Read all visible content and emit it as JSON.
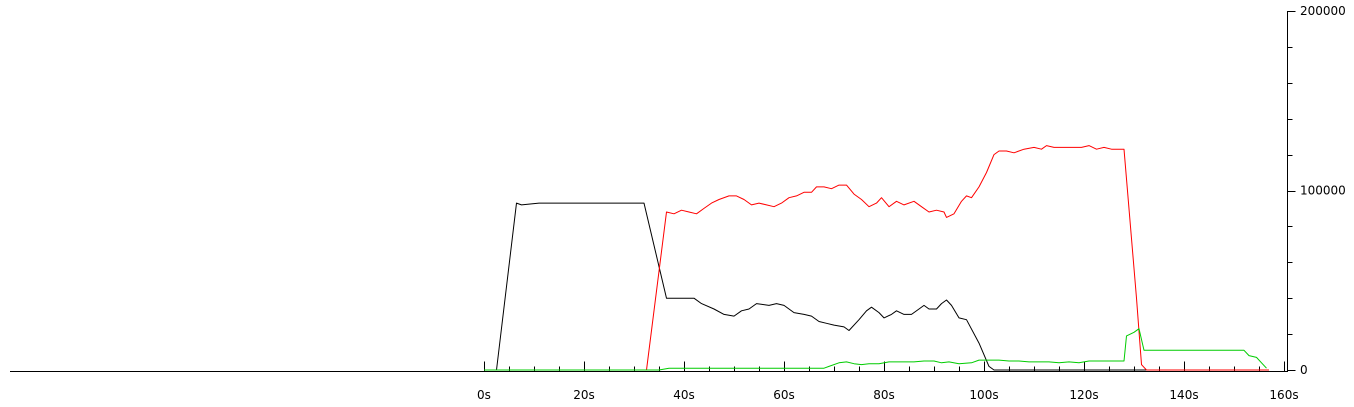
{
  "chart_data": {
    "type": "line",
    "title": "",
    "xlabel": "",
    "ylabel": "",
    "xlim": [
      0,
      160
    ],
    "ylim": [
      0,
      200000
    ],
    "x_tick_labels": [
      {
        "value": 0,
        "label": "0s"
      },
      {
        "value": 20,
        "label": "20s"
      },
      {
        "value": 40,
        "label": "40s"
      },
      {
        "value": 60,
        "label": "60s"
      },
      {
        "value": 80,
        "label": "80s"
      },
      {
        "value": 100,
        "label": "100s"
      },
      {
        "value": 120,
        "label": "120s"
      },
      {
        "value": 140,
        "label": "140s"
      },
      {
        "value": 160,
        "label": "160s"
      }
    ],
    "x_minor_step": 5,
    "y_tick_labels": [
      {
        "value": 200000,
        "label": "200000"
      },
      {
        "value": 100000,
        "label": "100000"
      },
      {
        "value": 0,
        "label": "0"
      }
    ],
    "y_minor_step": 20000,
    "y_axis_side": "right",
    "grid": false,
    "legend": "none",
    "series": [
      {
        "color": "#000000",
        "points": [
          [
            0,
            0
          ],
          [
            2.5,
            0
          ],
          [
            6.5,
            93000
          ],
          [
            7.5,
            92000
          ],
          [
            11,
            93000
          ],
          [
            32,
            93000
          ],
          [
            36.5,
            40000
          ],
          [
            42,
            40000
          ],
          [
            43.5,
            37000
          ],
          [
            46,
            34000
          ],
          [
            48,
            31000
          ],
          [
            50,
            30000
          ],
          [
            51.5,
            33000
          ],
          [
            53,
            34000
          ],
          [
            54.5,
            37000
          ],
          [
            57,
            36000
          ],
          [
            58.5,
            37000
          ],
          [
            60,
            36000
          ],
          [
            62,
            32000
          ],
          [
            64,
            31000
          ],
          [
            65.5,
            30000
          ],
          [
            67,
            27000
          ],
          [
            68.5,
            26000
          ],
          [
            70,
            25000
          ],
          [
            72,
            24000
          ],
          [
            73,
            22000
          ],
          [
            75,
            28000
          ],
          [
            76.5,
            33000
          ],
          [
            77.5,
            35000
          ],
          [
            79,
            32000
          ],
          [
            80,
            29000
          ],
          [
            81.5,
            31000
          ],
          [
            82.5,
            33000
          ],
          [
            84,
            31000
          ],
          [
            85.5,
            31000
          ],
          [
            87,
            34000
          ],
          [
            88,
            36000
          ],
          [
            89,
            34000
          ],
          [
            90.5,
            34000
          ],
          [
            91.5,
            37000
          ],
          [
            92.5,
            39000
          ],
          [
            93.5,
            36000
          ],
          [
            95,
            29000
          ],
          [
            96.5,
            28000
          ],
          [
            99,
            15000
          ],
          [
            101,
            2000
          ],
          [
            102,
            0
          ],
          [
            157,
            0
          ]
        ]
      },
      {
        "color": "#ff0000",
        "points": [
          [
            0,
            0
          ],
          [
            32.5,
            0
          ],
          [
            36.5,
            88000
          ],
          [
            38,
            87000
          ],
          [
            39.5,
            89000
          ],
          [
            41,
            88000
          ],
          [
            42.5,
            87000
          ],
          [
            44,
            90000
          ],
          [
            45.5,
            93000
          ],
          [
            47,
            95000
          ],
          [
            49,
            97000
          ],
          [
            50.5,
            97000
          ],
          [
            52,
            95000
          ],
          [
            53.5,
            92000
          ],
          [
            55,
            93000
          ],
          [
            56.5,
            92000
          ],
          [
            58,
            91000
          ],
          [
            59.5,
            93000
          ],
          [
            61,
            96000
          ],
          [
            62.5,
            97000
          ],
          [
            64,
            99000
          ],
          [
            65.5,
            99000
          ],
          [
            66.5,
            102000
          ],
          [
            68,
            102000
          ],
          [
            69.5,
            101000
          ],
          [
            71,
            103000
          ],
          [
            72.5,
            103000
          ],
          [
            74,
            98000
          ],
          [
            75.5,
            95000
          ],
          [
            77,
            91000
          ],
          [
            78.5,
            93000
          ],
          [
            79.5,
            96000
          ],
          [
            81,
            91000
          ],
          [
            82.5,
            94000
          ],
          [
            84,
            92000
          ],
          [
            86,
            94000
          ],
          [
            87.5,
            91000
          ],
          [
            89,
            88000
          ],
          [
            90.5,
            89000
          ],
          [
            92,
            88000
          ],
          [
            92.5,
            85000
          ],
          [
            94,
            87000
          ],
          [
            95.5,
            94000
          ],
          [
            96.5,
            97000
          ],
          [
            97.5,
            96000
          ],
          [
            99,
            102000
          ],
          [
            100.5,
            110000
          ],
          [
            102,
            120000
          ],
          [
            103,
            122000
          ],
          [
            104.5,
            122000
          ],
          [
            106,
            121000
          ],
          [
            108,
            123000
          ],
          [
            110,
            124000
          ],
          [
            111.5,
            123000
          ],
          [
            112.5,
            125000
          ],
          [
            114,
            124000
          ],
          [
            116,
            124000
          ],
          [
            118,
            124000
          ],
          [
            119.5,
            124000
          ],
          [
            121,
            125000
          ],
          [
            122.5,
            123000
          ],
          [
            124,
            124000
          ],
          [
            125.5,
            123000
          ],
          [
            127,
            123000
          ],
          [
            128,
            123000
          ],
          [
            130.5,
            40000
          ],
          [
            131.5,
            3000
          ],
          [
            132.5,
            0
          ],
          [
            157,
            0
          ]
        ]
      },
      {
        "color": "#00cc00",
        "points": [
          [
            0,
            0
          ],
          [
            35,
            0
          ],
          [
            37,
            1000
          ],
          [
            68,
            1000
          ],
          [
            69,
            2000
          ],
          [
            71,
            4000
          ],
          [
            72.5,
            4500
          ],
          [
            74,
            3500
          ],
          [
            75.5,
            3000
          ],
          [
            77,
            3500
          ],
          [
            79,
            3500
          ],
          [
            81,
            4500
          ],
          [
            84,
            4500
          ],
          [
            86,
            4500
          ],
          [
            88,
            5000
          ],
          [
            90,
            5000
          ],
          [
            91.5,
            4000
          ],
          [
            93,
            4500
          ],
          [
            95,
            3500
          ],
          [
            97.5,
            4000
          ],
          [
            99,
            5500
          ],
          [
            101,
            5500
          ],
          [
            103,
            5500
          ],
          [
            105,
            5000
          ],
          [
            107,
            5000
          ],
          [
            109,
            4500
          ],
          [
            111,
            4500
          ],
          [
            113,
            4500
          ],
          [
            115,
            4000
          ],
          [
            117,
            4500
          ],
          [
            119,
            4000
          ],
          [
            121,
            5000
          ],
          [
            123,
            5000
          ],
          [
            125,
            5000
          ],
          [
            128,
            5000
          ],
          [
            128.5,
            19000
          ],
          [
            130,
            21000
          ],
          [
            131,
            23000
          ],
          [
            132,
            11000
          ],
          [
            150,
            11000
          ],
          [
            152,
            11000
          ],
          [
            153,
            8000
          ],
          [
            154.5,
            7000
          ],
          [
            155.5,
            4000
          ],
          [
            156.5,
            1000
          ]
        ]
      }
    ]
  }
}
